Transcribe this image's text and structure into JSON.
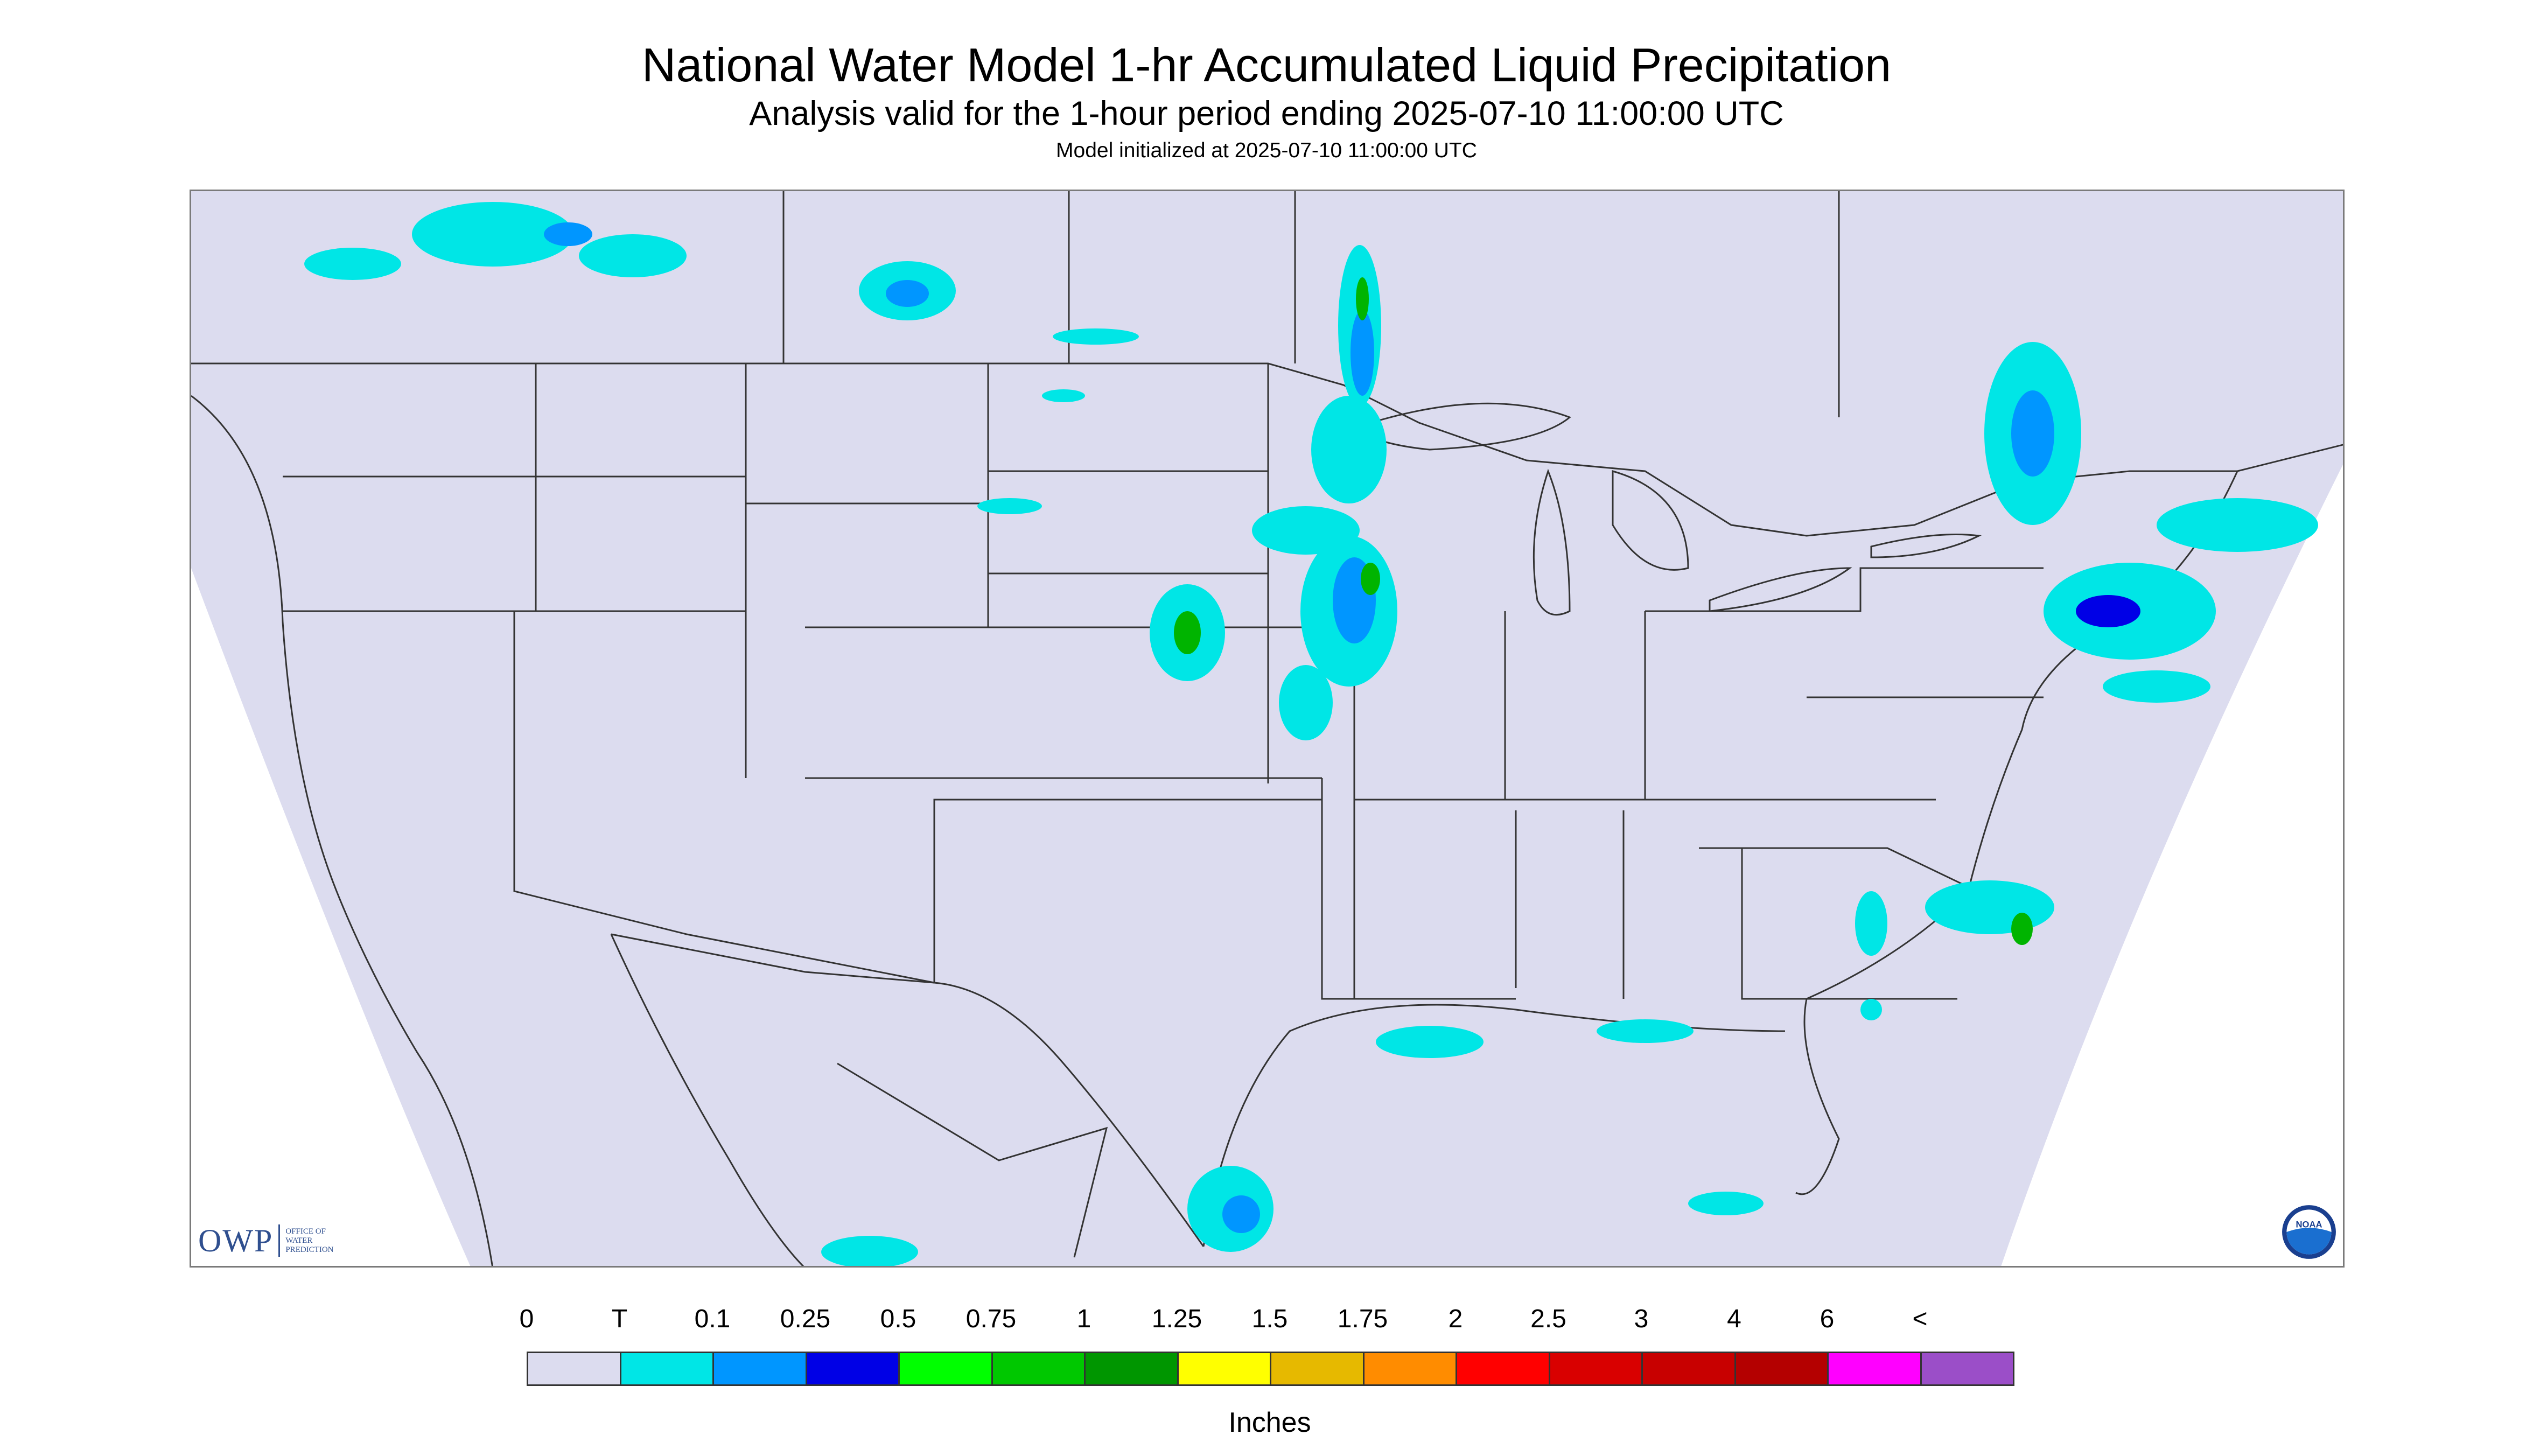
{
  "title": "National Water Model 1-hr Accumulated Liquid Precipitation",
  "subtitle": "Analysis valid for the 1-hour period ending 2025-07-10 11:00:00 UTC",
  "init_text": "Model initialized at 2025-07-10 11:00:00 UTC",
  "colors": {
    "map_background": "#dcdcef",
    "outside_domain": "#ffffff",
    "boundary_lines": "#333333",
    "light_cyan": "#00e6e6",
    "light_blue": "#0096ff",
    "blue": "#0000e6",
    "green": "#00b400"
  },
  "logos": {
    "owp": {
      "mark": "OWP",
      "subtitle_lines": [
        "Office of",
        "Water",
        "Prediction"
      ]
    },
    "noaa": {
      "mark": "NOAA"
    }
  },
  "legend": {
    "unit": "Inches",
    "labels": [
      "0",
      "T",
      "0.1",
      "0.25",
      "0.5",
      "0.75",
      "1",
      "1.25",
      "1.5",
      "1.75",
      "2",
      "2.5",
      "3",
      "4",
      "6",
      "<"
    ],
    "swatches": [
      "#dcdcef",
      "#00e6e6",
      "#0096ff",
      "#0000e6",
      "#00ff00",
      "#00c800",
      "#009600",
      "#ffff00",
      "#e6b900",
      "#ff8c00",
      "#ff0000",
      "#d90000",
      "#c80000",
      "#b40000",
      "#ff00ff",
      "#9b4ec8"
    ]
  }
}
